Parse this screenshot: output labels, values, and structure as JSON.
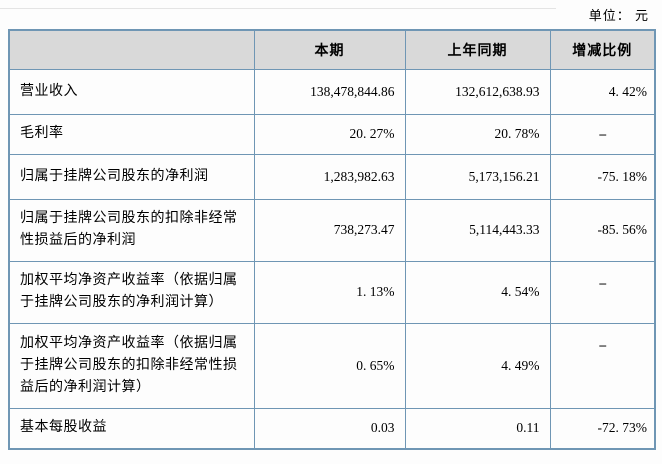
{
  "page": {
    "unit_label": "单位： 元"
  },
  "table": {
    "headers": {
      "metric": "",
      "current": "本期",
      "prior": "上年同期",
      "change": "增减比例"
    },
    "rows": [
      {
        "label": "营业收入",
        "current": "138,478,844.86",
        "prior": "132,612,638.93",
        "change": "4. 42%"
      },
      {
        "label": "毛利率",
        "current": "20. 27%",
        "prior": "20. 78%",
        "change": "–"
      },
      {
        "label": "归属于挂牌公司股东的净利润",
        "current": "1,283,982.63",
        "prior": "5,173,156.21",
        "change": "-75. 18%"
      },
      {
        "label": "归属于挂牌公司股东的扣除非经常性损益后的净利润",
        "current": "738,273.47",
        "prior": "5,114,443.33",
        "change": "-85. 56%"
      },
      {
        "label": "加权平均净资产收益率（依据归属于挂牌公司股东的净利润计算）",
        "current": "1. 13%",
        "prior": "4. 54%",
        "change": "–"
      },
      {
        "label": "加权平均净资产收益率（依据归属于挂牌公司股东的扣除非经常性损益后的净利润计算）",
        "current": "0. 65%",
        "prior": "4. 49%",
        "change": "–"
      },
      {
        "label": "基本每股收益",
        "current": "0.03",
        "prior": "0.11",
        "change": "-72. 73%"
      }
    ]
  },
  "colors": {
    "table_border": "#6f96b4",
    "header_background": "#d9d9d9",
    "text": "#000000"
  }
}
